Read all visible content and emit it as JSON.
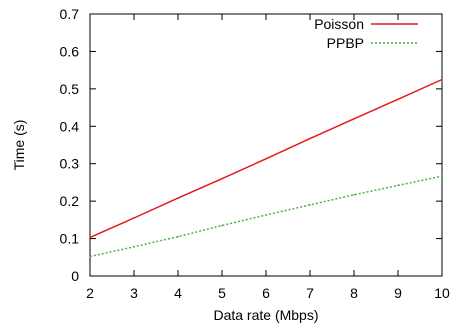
{
  "chart_data": {
    "type": "line",
    "title": "",
    "xlabel": "Data rate (Mbps)",
    "ylabel": "Time (s)",
    "xlim": [
      2,
      10
    ],
    "ylim": [
      0,
      0.7
    ],
    "xticks": [
      "2",
      "3",
      "4",
      "5",
      "6",
      "7",
      "8",
      "9",
      "10"
    ],
    "yticks": [
      "0",
      "0.1",
      "0.2",
      "0.3",
      "0.4",
      "0.5",
      "0.6",
      "0.7"
    ],
    "grid": false,
    "legend_position": "top-right",
    "series": [
      {
        "name": "Poisson",
        "color": "#e41a1c",
        "style": "solid",
        "x": [
          2,
          3,
          4,
          5,
          6,
          7,
          8,
          9,
          10
        ],
        "values": [
          0.103,
          0.155,
          0.208,
          0.26,
          0.313,
          0.367,
          0.42,
          0.472,
          0.525
        ]
      },
      {
        "name": "PPBP",
        "color": "#4daf4a",
        "style": "dotted",
        "x": [
          2,
          3,
          4,
          5,
          6,
          7,
          8,
          9,
          10
        ],
        "values": [
          0.052,
          0.078,
          0.105,
          0.135,
          0.163,
          0.19,
          0.217,
          0.242,
          0.267
        ]
      }
    ]
  }
}
